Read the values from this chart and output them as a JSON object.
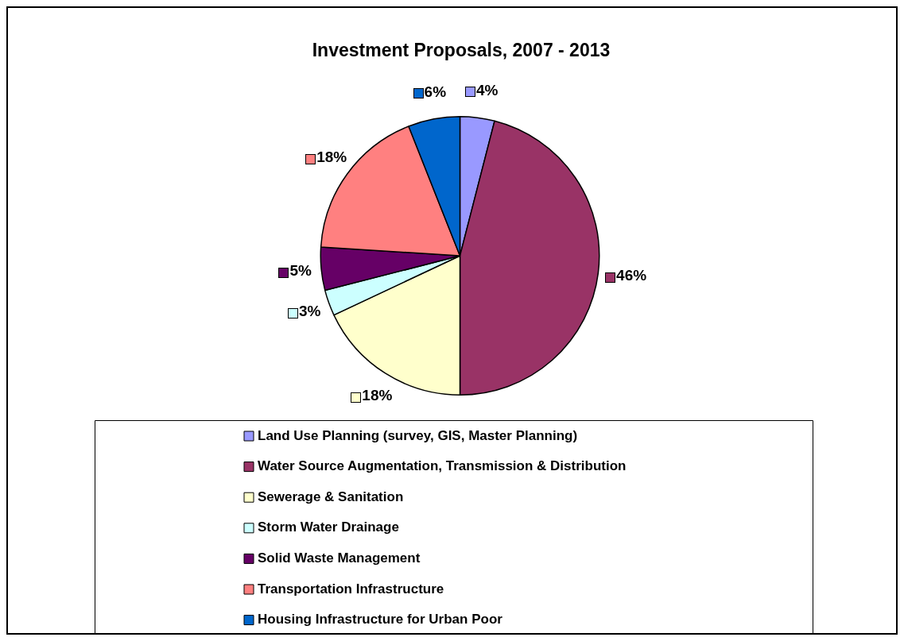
{
  "chart_data": {
    "type": "pie",
    "title": "Investment Proposals, 2007 - 2013",
    "categories": [
      "Land Use Planning (survey, GIS, Master Planning)",
      "Water Source Augmentation, Transmission & Distribution",
      "Sewerage & Sanitation",
      "Storm Water Drainage",
      "Solid Waste Management",
      "Transportation Infrastructure",
      "Housing Infrastructure for Urban Poor"
    ],
    "values": [
      4,
      46,
      18,
      3,
      5,
      18,
      6
    ],
    "value_labels": [
      "4%",
      "46%",
      "18%",
      "3%",
      "5%",
      "18%",
      "6%"
    ],
    "colors": [
      "#9999ff",
      "#993366",
      "#ffffcc",
      "#ccffff",
      "#660066",
      "#ff8080",
      "#0066cc"
    ],
    "legend": "bottom"
  }
}
